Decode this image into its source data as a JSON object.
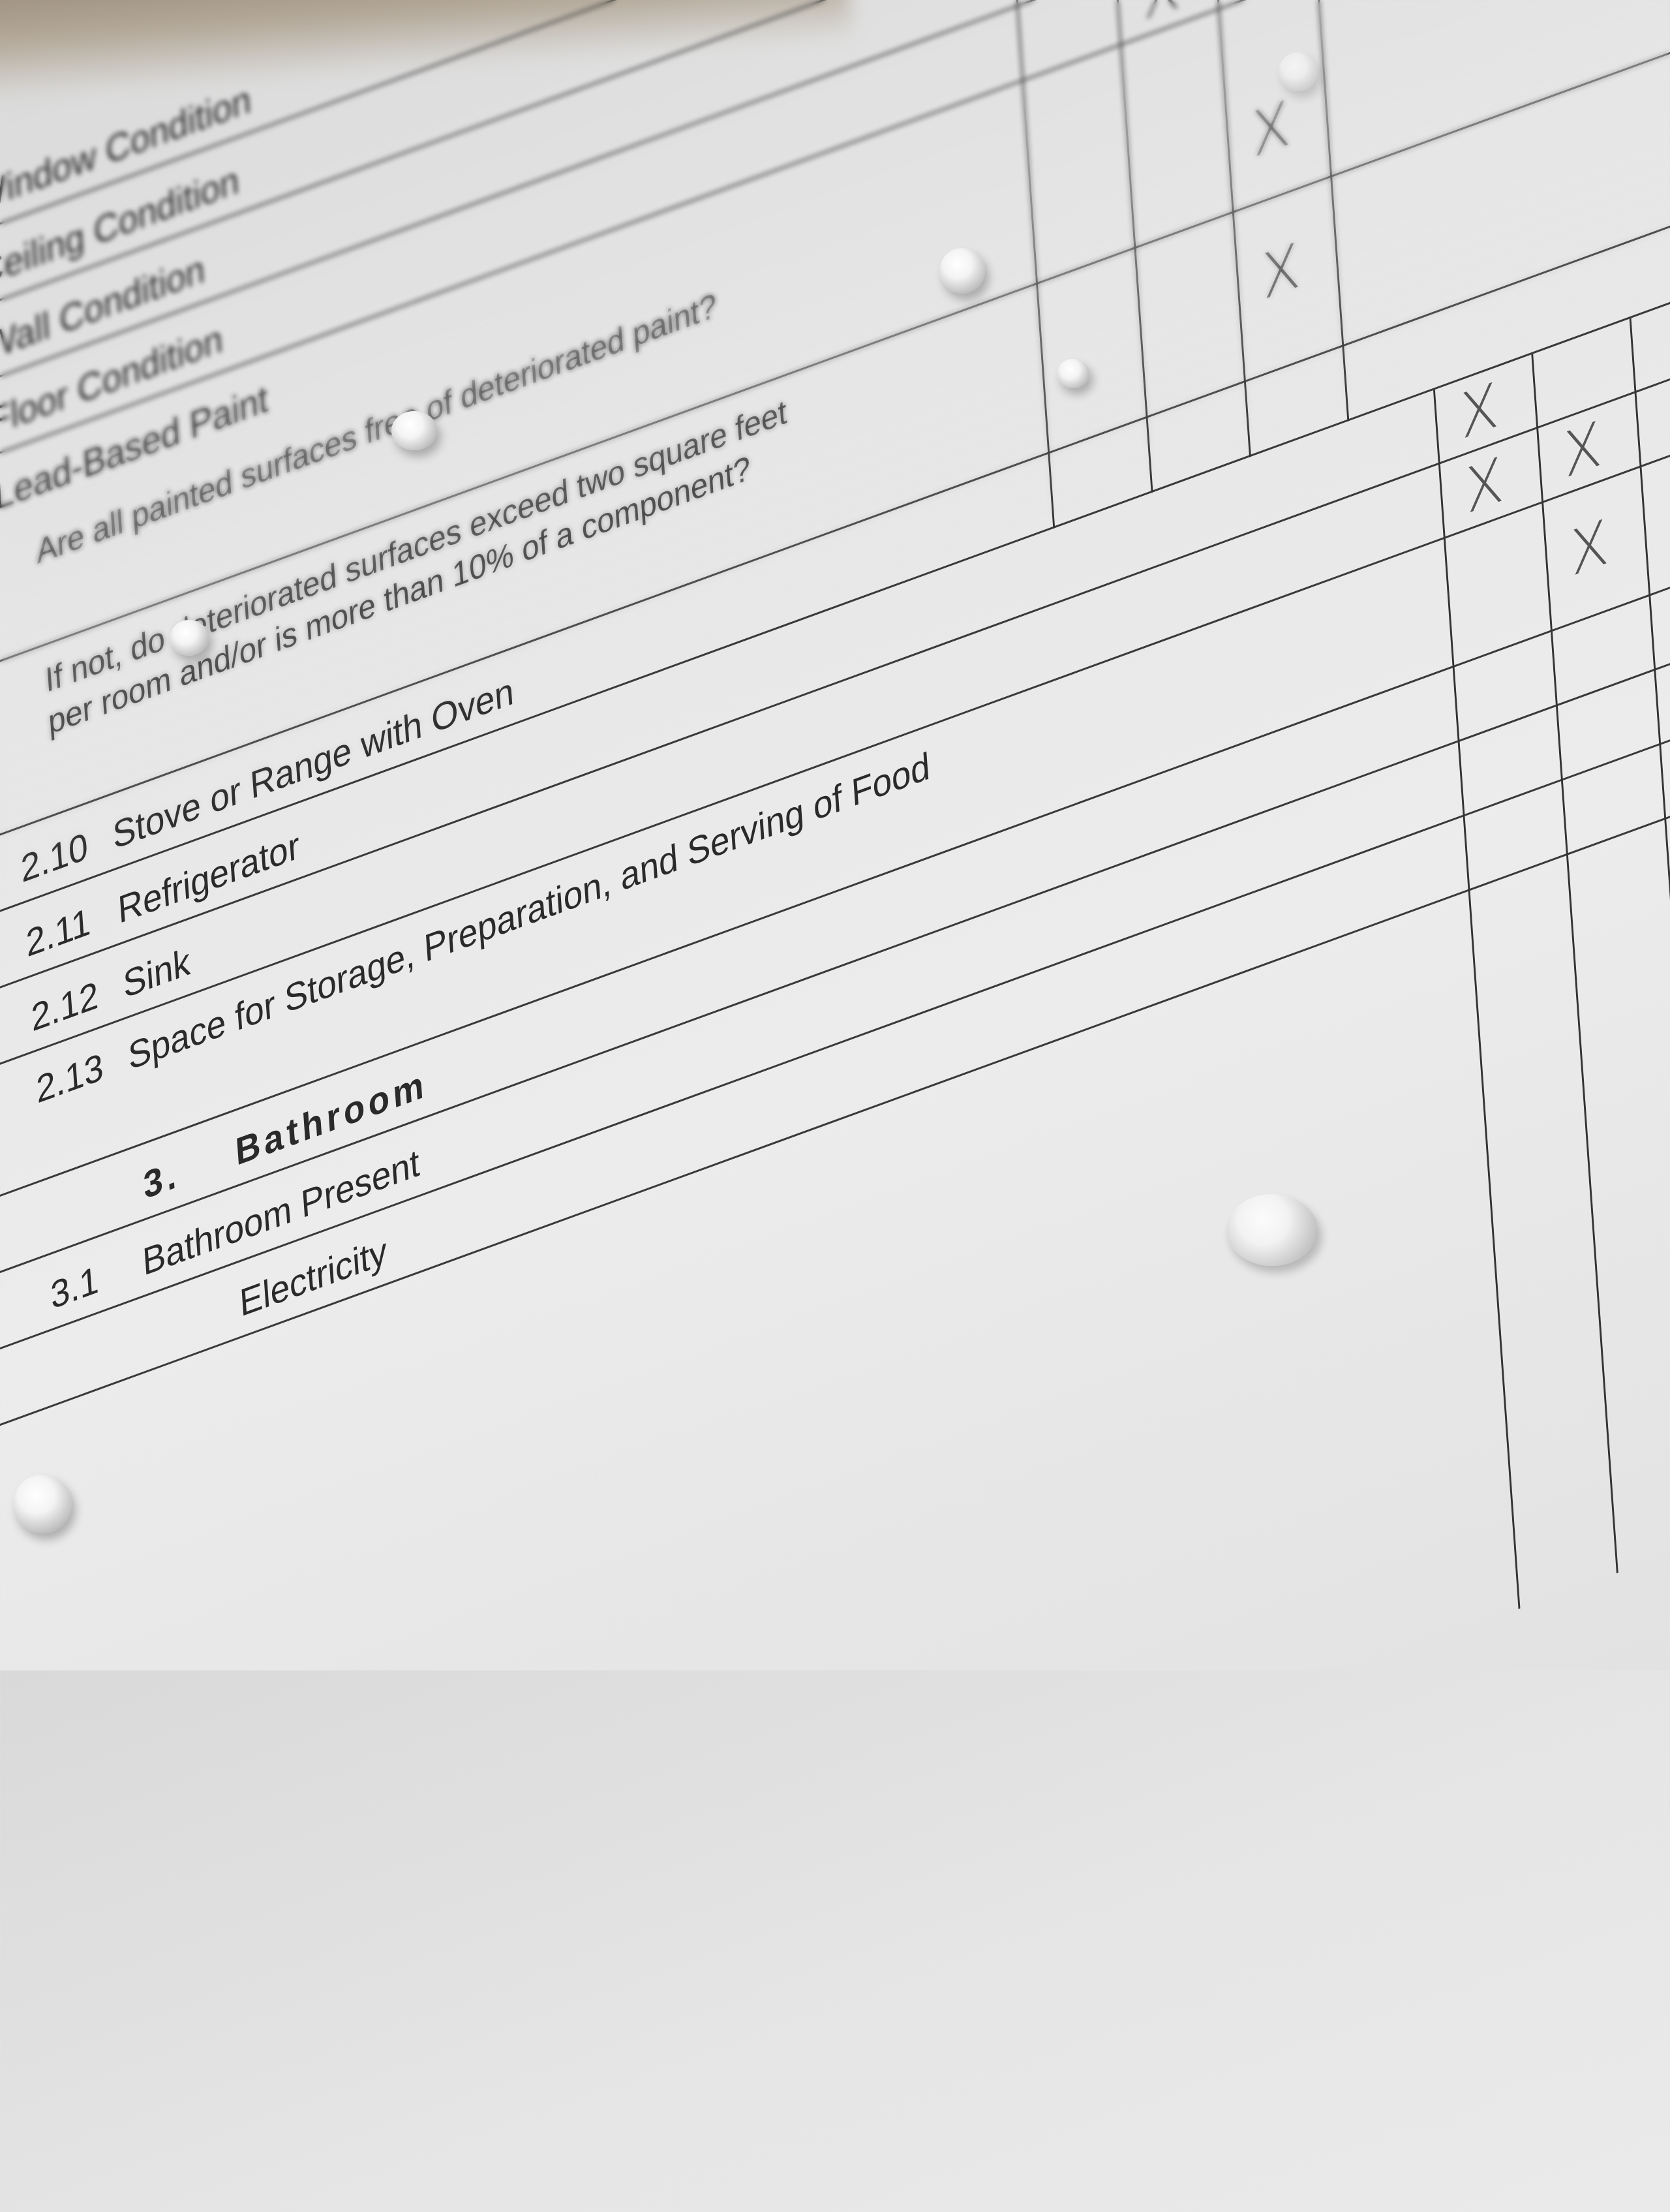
{
  "form": {
    "rows": [
      {
        "num": "",
        "label": "Window Condition"
      },
      {
        "num": "",
        "label": "Ceiling Condition"
      },
      {
        "num": "",
        "label": "Wall Condition"
      },
      {
        "num": "",
        "label": "Floor Condition"
      },
      {
        "num": "",
        "label": "Lead-Based Paint"
      },
      {
        "num": "",
        "label": "Are all painted surfaces free of deteriorated paint?"
      },
      {
        "num": "",
        "label": "If not, do deteriorated surfaces exceed two square feet per room and/or is more than 10% of a component?"
      },
      {
        "num": "2.10",
        "label": "Stove or Range with Oven"
      },
      {
        "num": "2.11",
        "label": "Refrigerator"
      },
      {
        "num": "2.12",
        "label": "Sink"
      },
      {
        "num": "2.13",
        "label": "Space for Storage, Preparation, and Serving of Food"
      },
      {
        "num": "3.",
        "label": "Bathroom"
      },
      {
        "num": "3.1",
        "label": "Bathroom Present"
      },
      {
        "num": "",
        "label": "Electricity"
      }
    ],
    "check_mark": "X"
  },
  "colors": {
    "ink": "#2a2a2a",
    "paper": "#e8e8e8",
    "grid": "#333333"
  }
}
